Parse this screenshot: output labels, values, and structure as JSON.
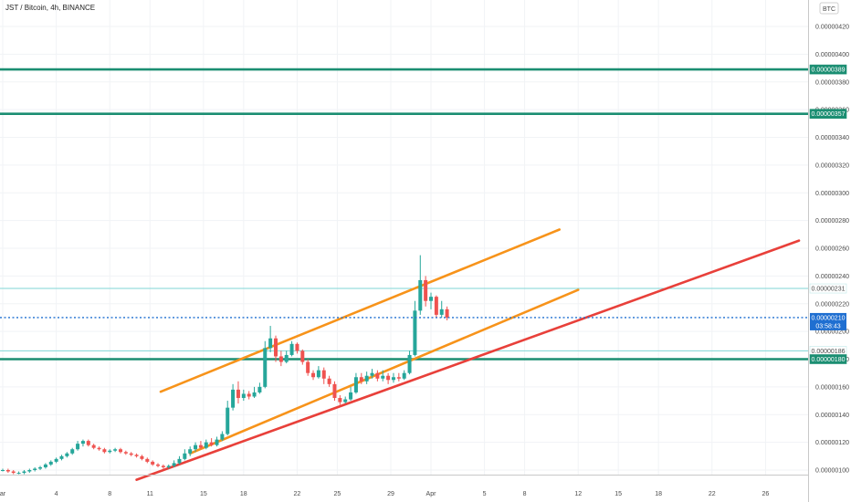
{
  "chart_data": {
    "type": "candlestick",
    "title": "JST / Bitcoin, 4h, BINANCE",
    "currency": "BTC",
    "ylim": [
      9e-07,
      4.3e-06
    ],
    "y_ticks": [
      "0.00000420",
      "0.00000400",
      "0.00000380",
      "0.00000360",
      "0.00000340",
      "0.00000320",
      "0.00000300",
      "0.00000280",
      "0.00000260",
      "0.00000240",
      "0.00000220",
      "0.00000200",
      "0.00000180",
      "0.00000160",
      "0.00000140",
      "0.00000120",
      "0.00000100"
    ],
    "x_ticks": [
      {
        "label": "ar",
        "day": 0
      },
      {
        "label": "4",
        "day": 4
      },
      {
        "label": "8",
        "day": 8
      },
      {
        "label": "11",
        "day": 11
      },
      {
        "label": "15",
        "day": 15
      },
      {
        "label": "18",
        "day": 18
      },
      {
        "label": "22",
        "day": 22
      },
      {
        "label": "25",
        "day": 25
      },
      {
        "label": "29",
        "day": 29
      },
      {
        "label": "Apr",
        "day": 32
      },
      {
        "label": "5",
        "day": 36
      },
      {
        "label": "8",
        "day": 39
      },
      {
        "label": "12",
        "day": 43
      },
      {
        "label": "15",
        "day": 46
      },
      {
        "label": "18",
        "day": 49
      },
      {
        "label": "22",
        "day": 53
      },
      {
        "label": "26",
        "day": 57
      }
    ],
    "horizontal_levels": [
      {
        "value": 3.89e-06,
        "label": "0.00000389",
        "color": "#1b8e72",
        "style": "thick"
      },
      {
        "value": 3.57e-06,
        "label": "0.00000357",
        "color": "#1b8e72",
        "style": "thick"
      },
      {
        "value": 2.31e-06,
        "label": "0.00000231",
        "color": "#7fd6d6",
        "style": "thin"
      },
      {
        "value": 1.86e-06,
        "label": "0.00000186",
        "color": "#7fd6d6",
        "style": "thin"
      },
      {
        "value": 1.8e-06,
        "label": "0.00000180",
        "color": "#1b8e72",
        "style": "thick"
      }
    ],
    "last_price": {
      "value": 2.1e-06,
      "label": "0.00000210",
      "countdown": "03:58:43",
      "color": "#1f6fd1"
    },
    "trend_lines": [
      {
        "color": "#f7931a",
        "from": {
          "day": 11.8,
          "price": 1.565e-06
        },
        "to": {
          "day": 41.6,
          "price": 2.735e-06
        }
      },
      {
        "color": "#f7931a",
        "from": {
          "day": 14.0,
          "price": 1.12e-06
        },
        "to": {
          "day": 43.0,
          "price": 2.3e-06
        }
      },
      {
        "color": "#e8403a",
        "from": {
          "day": 10.0,
          "price": 9.3e-07
        },
        "to": {
          "day": 59.5,
          "price": 2.655e-06
        }
      }
    ],
    "candles": [
      [
        0,
        1.0,
        1.0,
        0.99,
        1.01
      ],
      [
        0.4,
        1.0,
        0.99,
        0.98,
        1.01
      ],
      [
        0.8,
        0.99,
        0.98,
        0.97,
        1.0
      ],
      [
        1.2,
        0.98,
        0.98,
        0.97,
        0.99
      ],
      [
        1.6,
        0.98,
        0.99,
        0.97,
        1.0
      ],
      [
        2.0,
        0.99,
        1.0,
        0.98,
        1.01
      ],
      [
        2.4,
        1.0,
        1.01,
        0.99,
        1.02
      ],
      [
        2.8,
        1.01,
        1.02,
        1.0,
        1.03
      ],
      [
        3.2,
        1.02,
        1.04,
        1.01,
        1.05
      ],
      [
        3.6,
        1.04,
        1.06,
        1.03,
        1.07
      ],
      [
        4.0,
        1.06,
        1.08,
        1.05,
        1.09
      ],
      [
        4.4,
        1.08,
        1.1,
        1.07,
        1.11
      ],
      [
        4.8,
        1.1,
        1.12,
        1.09,
        1.13
      ],
      [
        5.2,
        1.12,
        1.15,
        1.11,
        1.16
      ],
      [
        5.6,
        1.15,
        1.19,
        1.14,
        1.21
      ],
      [
        6.0,
        1.19,
        1.21,
        1.17,
        1.22
      ],
      [
        6.4,
        1.21,
        1.18,
        1.17,
        1.22
      ],
      [
        6.8,
        1.18,
        1.16,
        1.15,
        1.19
      ],
      [
        7.2,
        1.16,
        1.15,
        1.14,
        1.17
      ],
      [
        7.6,
        1.15,
        1.13,
        1.12,
        1.16
      ],
      [
        8.0,
        1.13,
        1.14,
        1.12,
        1.15
      ],
      [
        8.4,
        1.14,
        1.15,
        1.13,
        1.16
      ],
      [
        8.8,
        1.15,
        1.13,
        1.12,
        1.16
      ],
      [
        9.2,
        1.13,
        1.12,
        1.11,
        1.14
      ],
      [
        9.6,
        1.12,
        1.11,
        1.1,
        1.13
      ],
      [
        10.0,
        1.11,
        1.1,
        1.09,
        1.12
      ],
      [
        10.4,
        1.1,
        1.08,
        1.07,
        1.11
      ],
      [
        10.8,
        1.08,
        1.06,
        1.05,
        1.09
      ],
      [
        11.2,
        1.06,
        1.04,
        1.03,
        1.07
      ],
      [
        11.6,
        1.04,
        1.03,
        1.02,
        1.05
      ],
      [
        12.0,
        1.03,
        1.02,
        1.01,
        1.04
      ],
      [
        12.4,
        1.02,
        1.03,
        1.01,
        1.04
      ],
      [
        12.8,
        1.03,
        1.05,
        1.02,
        1.07
      ],
      [
        13.2,
        1.05,
        1.08,
        1.04,
        1.1
      ],
      [
        13.6,
        1.08,
        1.12,
        1.07,
        1.15
      ],
      [
        14.0,
        1.12,
        1.15,
        1.1,
        1.17
      ],
      [
        14.4,
        1.15,
        1.18,
        1.13,
        1.2
      ],
      [
        14.8,
        1.18,
        1.16,
        1.15,
        1.21
      ],
      [
        15.2,
        1.16,
        1.2,
        1.15,
        1.22
      ],
      [
        15.6,
        1.2,
        1.18,
        1.17,
        1.23
      ],
      [
        16.0,
        1.18,
        1.22,
        1.17,
        1.24
      ],
      [
        16.4,
        1.22,
        1.26,
        1.21,
        1.28
      ],
      [
        16.8,
        1.26,
        1.45,
        1.25,
        1.5
      ],
      [
        17.2,
        1.45,
        1.58,
        1.43,
        1.62
      ],
      [
        17.6,
        1.58,
        1.52,
        1.48,
        1.64
      ],
      [
        18.0,
        1.52,
        1.55,
        1.5,
        1.58
      ],
      [
        18.4,
        1.55,
        1.53,
        1.51,
        1.57
      ],
      [
        18.8,
        1.53,
        1.56,
        1.52,
        1.6
      ],
      [
        19.2,
        1.56,
        1.6,
        1.55,
        1.63
      ],
      [
        19.6,
        1.6,
        1.88,
        1.59,
        1.93
      ],
      [
        20.0,
        1.88,
        1.95,
        1.85,
        2.04
      ],
      [
        20.4,
        1.95,
        1.82,
        1.78,
        1.97
      ],
      [
        20.8,
        1.82,
        1.78,
        1.75,
        1.86
      ],
      [
        21.2,
        1.78,
        1.83,
        1.77,
        1.86
      ],
      [
        21.6,
        1.83,
        1.91,
        1.82,
        1.93
      ],
      [
        22.0,
        1.91,
        1.86,
        1.84,
        1.92
      ],
      [
        22.4,
        1.86,
        1.78,
        1.76,
        1.87
      ],
      [
        22.8,
        1.78,
        1.7,
        1.68,
        1.8
      ],
      [
        23.2,
        1.7,
        1.67,
        1.65,
        1.72
      ],
      [
        23.6,
        1.67,
        1.72,
        1.66,
        1.75
      ],
      [
        24.0,
        1.72,
        1.66,
        1.62,
        1.74
      ],
      [
        24.4,
        1.66,
        1.62,
        1.6,
        1.68
      ],
      [
        24.8,
        1.62,
        1.52,
        1.5,
        1.64
      ],
      [
        25.2,
        1.52,
        1.49,
        1.47,
        1.54
      ],
      [
        25.6,
        1.49,
        1.51,
        1.48,
        1.53
      ],
      [
        26.0,
        1.51,
        1.56,
        1.5,
        1.6
      ],
      [
        26.4,
        1.56,
        1.67,
        1.55,
        1.7
      ],
      [
        26.8,
        1.67,
        1.64,
        1.62,
        1.7
      ],
      [
        27.2,
        1.64,
        1.68,
        1.62,
        1.71
      ],
      [
        27.6,
        1.68,
        1.7,
        1.66,
        1.73
      ],
      [
        28.0,
        1.7,
        1.66,
        1.64,
        1.72
      ],
      [
        28.4,
        1.66,
        1.68,
        1.64,
        1.72
      ],
      [
        28.8,
        1.68,
        1.65,
        1.62,
        1.7
      ],
      [
        29.2,
        1.65,
        1.67,
        1.63,
        1.7
      ],
      [
        29.6,
        1.67,
        1.66,
        1.64,
        1.7
      ],
      [
        30.0,
        1.66,
        1.7,
        1.65,
        1.72
      ],
      [
        30.4,
        1.7,
        1.83,
        1.69,
        1.86
      ],
      [
        30.8,
        1.83,
        2.15,
        1.82,
        2.22
      ],
      [
        31.2,
        2.15,
        2.37,
        2.12,
        2.55
      ],
      [
        31.6,
        2.37,
        2.22,
        2.18,
        2.4
      ],
      [
        32.0,
        2.22,
        2.25,
        2.16,
        2.28
      ],
      [
        32.4,
        2.25,
        2.12,
        2.1,
        2.26
      ],
      [
        32.8,
        2.12,
        2.16,
        2.1,
        2.22
      ],
      [
        33.2,
        2.16,
        2.1,
        2.08,
        2.18
      ]
    ]
  }
}
